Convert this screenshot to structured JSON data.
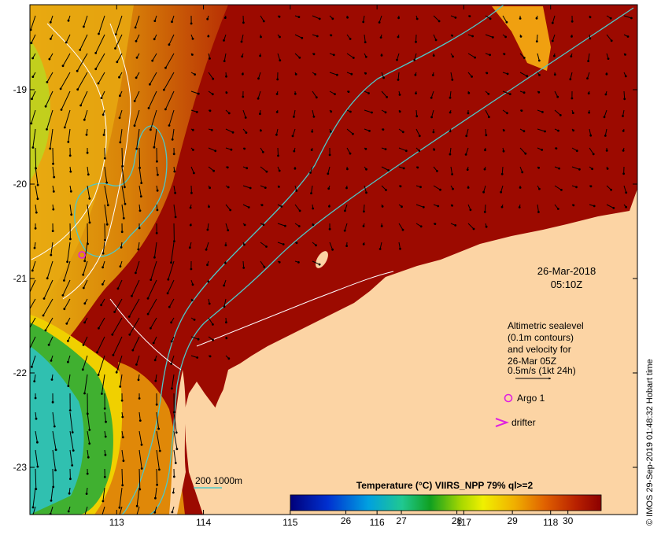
{
  "map": {
    "lon_range": [
      112,
      119
    ],
    "lat_range": [
      -23.5,
      -18.1
    ],
    "x_ticks": [
      "113",
      "114",
      "115",
      "116",
      "117",
      "118"
    ],
    "y_ticks": [
      "-19",
      "-20",
      "-21",
      "-22",
      "-23"
    ]
  },
  "timestamp": {
    "date": "26-Mar-2018",
    "time": "05:10Z"
  },
  "legend": {
    "lines": [
      "Altimetric sealevel",
      "(0.1m contours)",
      "and velocity for",
      "26-Mar 05Z",
      "0.5m/s (1kt 24h)"
    ],
    "argo_label": "Argo 1",
    "drifter_label": "drifter",
    "isobath_label": "200  1000m"
  },
  "colorbar": {
    "title": "Temperature (°C) VIIRS_NPP 79% ql>=2",
    "ticks": [
      "26",
      "27",
      "28",
      "29",
      "30"
    ],
    "range": [
      25,
      30.6
    ]
  },
  "credit": "© IMOS 29-Sep-2019 01:48:32 Hobart time",
  "colors": {
    "land": "#fcd4a4",
    "warm": "#9c0a00",
    "isobath": "#4ec8c8",
    "argo": "#e020e0"
  },
  "argo": {
    "lon": 112.6,
    "lat": -20.75
  }
}
